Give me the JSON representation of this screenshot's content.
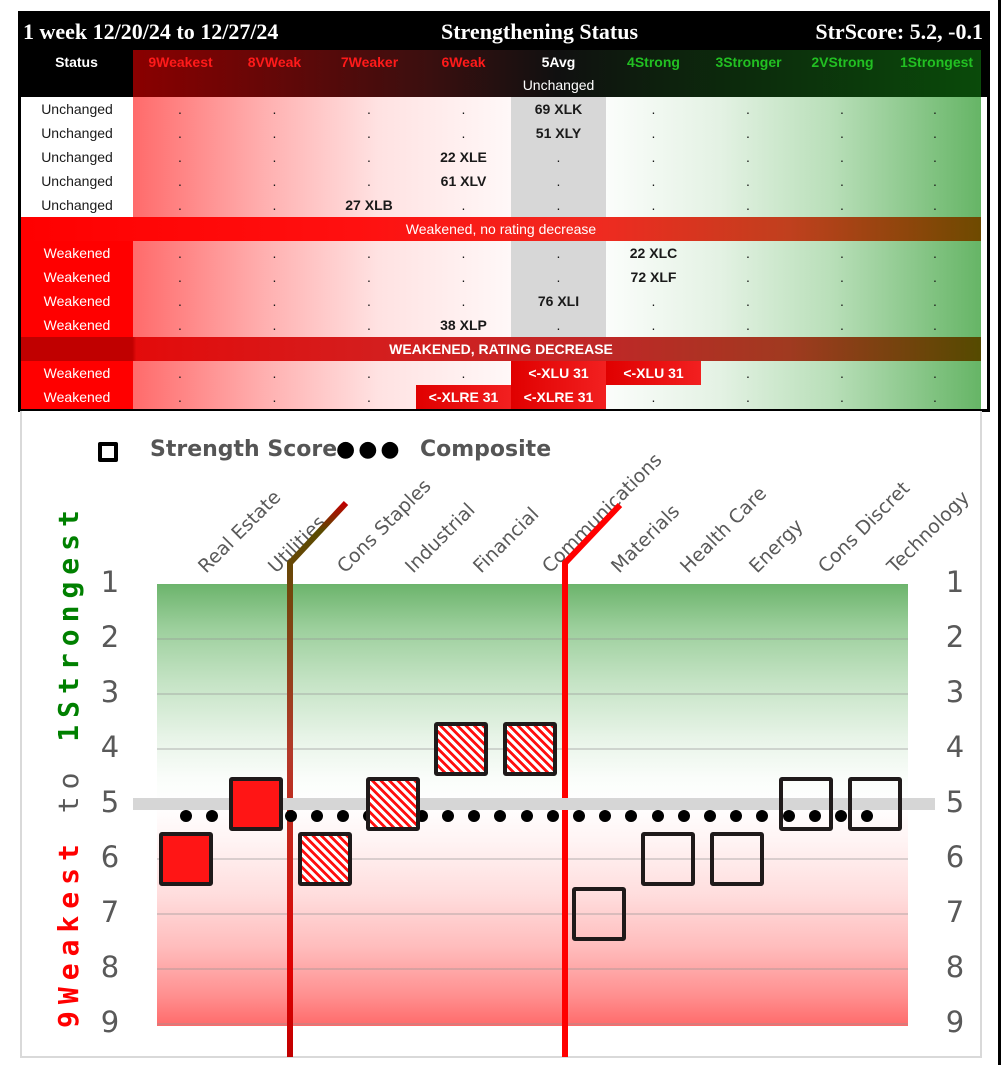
{
  "table": {
    "title_left": "1 week 12/20/24 to 12/27/24",
    "title_center": "Strengthening Status",
    "title_right": "StrScore: 5.2, -0.1",
    "headers": [
      {
        "label": "Status",
        "color": "#ffffff"
      },
      {
        "label": "9Weakest",
        "color": "#ff1a1a"
      },
      {
        "label": "8VWeak",
        "color": "#ff1a1a"
      },
      {
        "label": "7Weaker",
        "color": "#ff1a1a"
      },
      {
        "label": "6Weak",
        "color": "#ff1a1a"
      },
      {
        "label": "5Avg",
        "color": "#ffffff"
      },
      {
        "label": "4Strong",
        "color": "#22c022"
      },
      {
        "label": "3Stronger",
        "color": "#22c022"
      },
      {
        "label": "2VStrong",
        "color": "#22c022"
      },
      {
        "label": "1Strongest",
        "color": "#22c022"
      }
    ],
    "avg_subheader": "Unchanged",
    "unchanged_rows": [
      {
        "status": "Unchanged",
        "cells": [
          ".",
          ".",
          ".",
          ".",
          "69 XLK",
          ".",
          ".",
          ".",
          "."
        ]
      },
      {
        "status": "Unchanged",
        "cells": [
          ".",
          ".",
          ".",
          ".",
          "51 XLY",
          ".",
          ".",
          ".",
          "."
        ]
      },
      {
        "status": "Unchanged",
        "cells": [
          ".",
          ".",
          ".",
          "22 XLE",
          ".",
          ".",
          ".",
          ".",
          "."
        ]
      },
      {
        "status": "Unchanged",
        "cells": [
          ".",
          ".",
          ".",
          "61 XLV",
          ".",
          ".",
          ".",
          ".",
          "."
        ]
      },
      {
        "status": "Unchanged",
        "cells": [
          ".",
          ".",
          "27 XLB",
          ".",
          ".",
          ".",
          ".",
          ".",
          "."
        ]
      }
    ],
    "section_weakened_no_decrease": "Weakened, no rating decrease",
    "weakened_rows": [
      {
        "status": "Weakened",
        "cells": [
          ".",
          ".",
          ".",
          ".",
          ".",
          "22 XLC",
          ".",
          ".",
          "."
        ]
      },
      {
        "status": "Weakened",
        "cells": [
          ".",
          ".",
          ".",
          ".",
          ".",
          "72 XLF",
          ".",
          ".",
          "."
        ]
      },
      {
        "status": "Weakened",
        "cells": [
          ".",
          ".",
          ".",
          ".",
          "76 XLI",
          ".",
          ".",
          ".",
          "."
        ]
      },
      {
        "status": "Weakened",
        "cells": [
          ".",
          ".",
          ".",
          "38 XLP",
          ".",
          ".",
          ".",
          ".",
          "."
        ]
      }
    ],
    "section_weakened_rating_decrease": "WEAKENED, RATING DECREASE",
    "decrease_rows": [
      {
        "status": "Weakened",
        "cells": [
          ".",
          ".",
          ".",
          ".",
          "<-XLU 31",
          "<-XLU 31",
          ".",
          ".",
          "."
        ],
        "red": [
          4,
          5
        ]
      },
      {
        "status": "Weakened",
        "cells": [
          ".",
          ".",
          ".",
          "<-XLRE 31",
          "<-XLRE 31",
          ".",
          ".",
          ".",
          "."
        ],
        "red": [
          3,
          4
        ]
      }
    ]
  },
  "chart_data": {
    "type": "scatter",
    "title": "",
    "legend": [
      {
        "name": "Strength Score",
        "marker": "square"
      },
      {
        "name": "Composite",
        "marker": "dots"
      }
    ],
    "categories": [
      "Real Estate",
      "Utilities",
      "Cons Staples",
      "Industrial",
      "Financial",
      "Communications",
      "Materials",
      "Health Care",
      "Energy",
      "Cons Discret",
      "Technology"
    ],
    "series": [
      {
        "name": "Strength Score",
        "values": [
          6,
          5,
          6,
          5,
          4,
          4,
          7,
          6,
          6,
          5,
          5
        ],
        "styles": [
          "filled",
          "filled",
          "hatched",
          "hatched",
          "hatched",
          "hatched",
          "empty",
          "empty",
          "empty",
          "empty",
          "empty"
        ]
      },
      {
        "name": "Composite",
        "values": [
          5.2,
          5.2,
          5.2,
          5.2,
          5.2,
          5.2,
          5.2,
          5.2,
          5.2,
          5.2,
          5.2
        ]
      }
    ],
    "reference_line": 5,
    "ylabel_parts": [
      {
        "text": "9Weakest",
        "color": "#ff0000"
      },
      {
        "text": " to ",
        "color": "#595959"
      },
      {
        "text": "1Strongest",
        "color": "#008000"
      }
    ],
    "yticks": [
      "1",
      "2",
      "3",
      "4",
      "5",
      "6",
      "7",
      "8",
      "9"
    ],
    "ylim": [
      9,
      1
    ],
    "y_inverted": true,
    "grid": true,
    "divider_lines": [
      {
        "after_category": "Utilities",
        "color": "#c00000"
      },
      {
        "after_category": "Communications",
        "color": "#ff0000"
      }
    ]
  }
}
